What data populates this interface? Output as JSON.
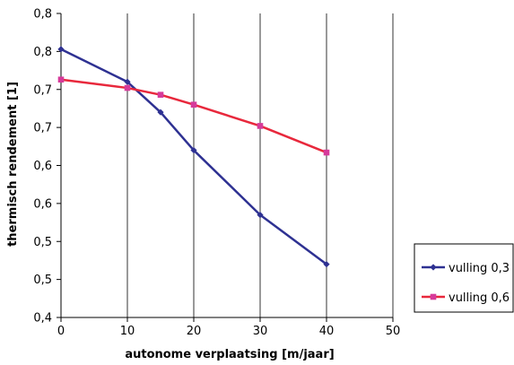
{
  "chart_data": {
    "type": "line",
    "xlabel": "autonome verplaatsing [m/jaar]",
    "ylabel": "thermisch rendement [1]",
    "xlim": [
      0,
      50
    ],
    "ylim": [
      0.4,
      0.8
    ],
    "x_ticks": [
      0,
      10,
      20,
      30,
      40,
      50
    ],
    "x_tick_labels": [
      "0",
      "10",
      "20",
      "30",
      "40",
      "50"
    ],
    "y_ticks": [
      0.4,
      0.45,
      0.5,
      0.55,
      0.6,
      0.65,
      0.7,
      0.75,
      0.8
    ],
    "y_tick_labels": [
      "0,4",
      "0,5",
      "0,5",
      "0,6",
      "0,6",
      "0,7",
      "0,7",
      "0,8",
      "0,8"
    ],
    "grid": "vertical",
    "legend_position": "right",
    "series": [
      {
        "name": "vulling 0,3",
        "color": "#2e3192",
        "marker": "diamond",
        "x": [
          0,
          10,
          15,
          20,
          30,
          40
        ],
        "y": [
          0.753,
          0.71,
          0.67,
          0.62,
          0.535,
          0.47
        ]
      },
      {
        "name": "vulling 0,6",
        "color": "#e8283c",
        "marker_color": "#d63a9a",
        "marker": "square",
        "x": [
          0,
          10,
          15,
          20,
          30,
          40
        ],
        "y": [
          0.713,
          0.702,
          0.693,
          0.68,
          0.652,
          0.617
        ]
      }
    ]
  }
}
